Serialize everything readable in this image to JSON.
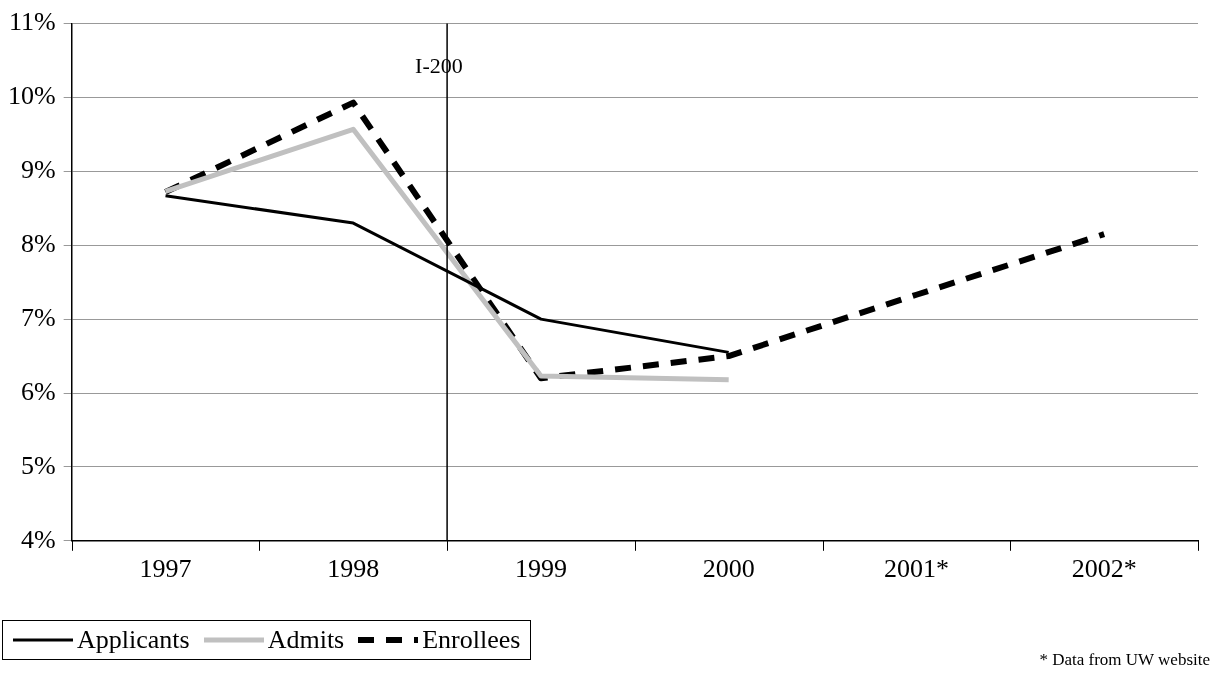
{
  "chart_data": {
    "type": "line",
    "x": [
      1997,
      1998,
      1999,
      2000,
      2001,
      2002
    ],
    "xlim": [
      1996.5,
      2002.5
    ],
    "xticks": [
      {
        "value": 1997,
        "label": "1997"
      },
      {
        "value": 1998,
        "label": "1998"
      },
      {
        "value": 1999,
        "label": "1999"
      },
      {
        "value": 2000,
        "label": "2000"
      },
      {
        "value": 2001,
        "label": "2001*"
      },
      {
        "value": 2002,
        "label": "2002*"
      }
    ],
    "ylim": [
      4,
      11
    ],
    "yticks": [
      {
        "value": 4,
        "label": "4%"
      },
      {
        "value": 5,
        "label": "5%"
      },
      {
        "value": 6,
        "label": "6%"
      },
      {
        "value": 7,
        "label": "7%"
      },
      {
        "value": 8,
        "label": "8%"
      },
      {
        "value": 9,
        "label": "9%"
      },
      {
        "value": 10,
        "label": "10%"
      },
      {
        "value": 11,
        "label": "11%"
      }
    ],
    "series": [
      {
        "name": "Applicants",
        "color": "#000000",
        "values": [
          8.67,
          8.3,
          7.0,
          6.55,
          null,
          null
        ],
        "line_style": "solid"
      },
      {
        "name": "Admits",
        "color": "#c0c0c0",
        "values": [
          8.73,
          9.57,
          6.23,
          6.18,
          null,
          null
        ],
        "line_style": "solid"
      },
      {
        "name": "Enrollees",
        "color": "#000000",
        "values": [
          8.72,
          9.93,
          6.2,
          6.5,
          7.33,
          8.15
        ],
        "line_style": "dashed"
      }
    ],
    "ref_lines": [
      {
        "axis": "x",
        "value": 1998.5,
        "label": "I-200",
        "color": "#000000"
      }
    ],
    "grid": "y",
    "legend": "bottom left",
    "marker": "none",
    "annotations": [
      "* Data from UW website"
    ]
  }
}
